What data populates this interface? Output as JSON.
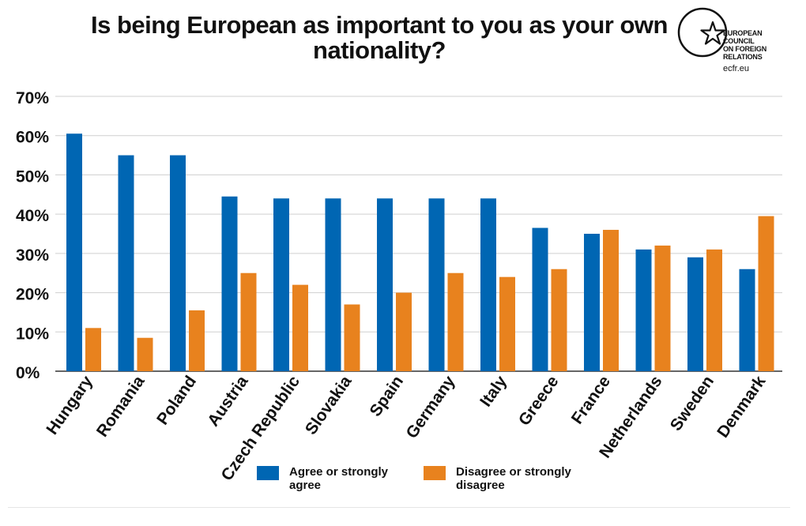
{
  "title_line1": "Is being European as important to you as your own",
  "title_line2": "nationality?",
  "logo": {
    "line1": "EUROPEAN",
    "line2": "COUNCIL",
    "line3": "ON FOREIGN",
    "line4": "RELATIONS",
    "url": "ecfr.eu",
    "icon": "star-circle-icon"
  },
  "colors": {
    "agree": "#0066b3",
    "disagree": "#e8821e",
    "grid": "#cfcfcf",
    "axis": "#333333"
  },
  "chart_data": {
    "type": "bar",
    "title": "Is being European as important to you as your own nationality?",
    "xlabel": "",
    "ylabel": "",
    "ylim": [
      0,
      70
    ],
    "ytick_labels": [
      "0%",
      "10%",
      "20%",
      "30%",
      "40%",
      "50%",
      "60%",
      "70%"
    ],
    "ytick_values": [
      0,
      10,
      20,
      30,
      40,
      50,
      60,
      70
    ],
    "categories": [
      "Hungary",
      "Romania",
      "Poland",
      "Austria",
      "Czech Republic",
      "Slovakia",
      "Spain",
      "Germany",
      "Italy",
      "Greece",
      "France",
      "Netherlands",
      "Sweden",
      "Denmark"
    ],
    "series": [
      {
        "name": "Agree or strongly agree",
        "legend_line1": "Agree or strongly",
        "legend_line2": "agree",
        "color": "#0066b3",
        "values": [
          60.5,
          55,
          55,
          44.5,
          44,
          44,
          44,
          44,
          44,
          36.5,
          35,
          31,
          29,
          26
        ]
      },
      {
        "name": "Disagree or strongly disagree",
        "legend_line1": "Disagree or strongly",
        "legend_line2": "disagree",
        "color": "#e8821e",
        "values": [
          11,
          8.5,
          15.5,
          25,
          22,
          17,
          20,
          25,
          24,
          26,
          36,
          32,
          31,
          39.5
        ]
      }
    ],
    "legend_position": "bottom-center",
    "grid": true
  }
}
